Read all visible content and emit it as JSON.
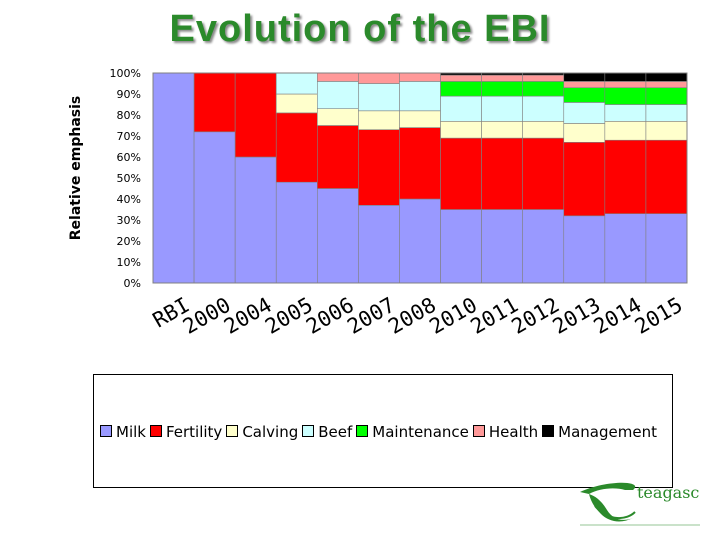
{
  "title": "Evolution of the EBI",
  "chart_data": {
    "type": "bar",
    "stacked": true,
    "categories": [
      "RBI",
      "2000",
      "2004",
      "2005",
      "2006",
      "2007",
      "2008",
      "2010",
      "2011",
      "2012",
      "2013",
      "2014",
      "2015"
    ],
    "ylabel": "Relative emphasis",
    "ylim": [
      0,
      100
    ],
    "yticks": [
      "0%",
      "10%",
      "20%",
      "30%",
      "40%",
      "50%",
      "60%",
      "70%",
      "80%",
      "90%",
      "100%"
    ],
    "series": [
      {
        "name": "Milk",
        "color": "#9999ff",
        "values": [
          100,
          72,
          60,
          48,
          45,
          37,
          40,
          35,
          35,
          35,
          32,
          33,
          33
        ]
      },
      {
        "name": "Fertility",
        "color": "#ff0000",
        "values": [
          0,
          28,
          40,
          33,
          30,
          36,
          34,
          34,
          34,
          34,
          35,
          35,
          35
        ]
      },
      {
        "name": "Calving",
        "color": "#ffffcc",
        "values": [
          0,
          0,
          0,
          9,
          8,
          9,
          8,
          8,
          8,
          8,
          9,
          9,
          9
        ]
      },
      {
        "name": "Beef",
        "color": "#ccffff",
        "values": [
          0,
          0,
          0,
          10,
          13,
          13,
          14,
          12,
          12,
          12,
          10,
          8,
          8
        ]
      },
      {
        "name": "Maintenance",
        "color": "#00ff00",
        "values": [
          0,
          0,
          0,
          0,
          0,
          0,
          0,
          7,
          7,
          7,
          7,
          8,
          8
        ]
      },
      {
        "name": "Health",
        "color": "#ff9999",
        "values": [
          0,
          0,
          0,
          0,
          4,
          5,
          4,
          3,
          3,
          3,
          3,
          3,
          3
        ]
      },
      {
        "name": "Management",
        "color": "#000000",
        "values": [
          0,
          0,
          0,
          0,
          0,
          0,
          0,
          1,
          1,
          1,
          4,
          4,
          4
        ]
      }
    ]
  },
  "logo": {
    "text": "teagasc"
  }
}
